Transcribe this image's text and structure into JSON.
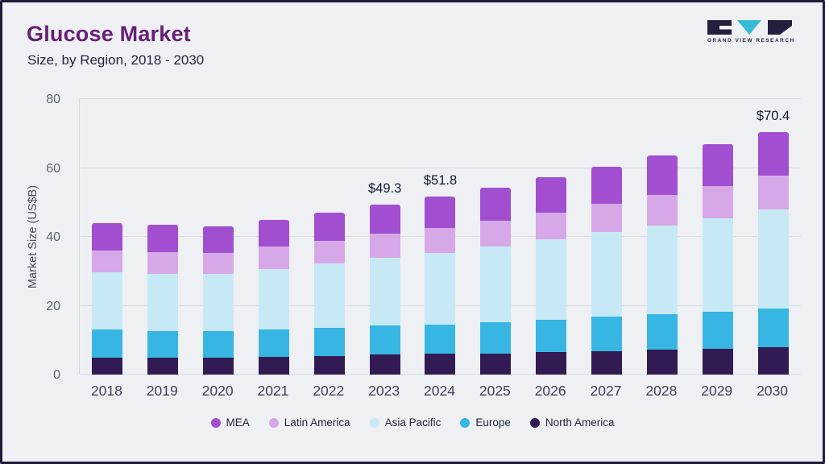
{
  "header": {
    "title": "Glucose Market",
    "subtitle": "Size, by Region, 2018 - 2030"
  },
  "logo": {
    "text": "GRAND VIEW RESEARCH"
  },
  "chart_data": {
    "type": "bar",
    "stacked": true,
    "title": "Glucose Market Size, by Region, 2018 - 2030",
    "xlabel": "",
    "ylabel": "Market Size (US$B)",
    "ylim": [
      0,
      80
    ],
    "yticks": [
      0,
      20,
      40,
      60,
      80
    ],
    "grid": true,
    "legend_position": "bottom",
    "categories": [
      "2018",
      "2019",
      "2020",
      "2021",
      "2022",
      "2023",
      "2024",
      "2025",
      "2026",
      "2027",
      "2028",
      "2029",
      "2030"
    ],
    "series": [
      {
        "name": "North America",
        "color": "#321b52",
        "values": [
          5.0,
          5.0,
          5.0,
          5.2,
          5.5,
          5.8,
          6.0,
          6.2,
          6.5,
          6.9,
          7.2,
          7.5,
          7.9
        ]
      },
      {
        "name": "Europe",
        "color": "#38b6e3",
        "values": [
          8.2,
          7.6,
          7.6,
          7.9,
          8.1,
          8.4,
          8.6,
          9.1,
          9.5,
          9.9,
          10.3,
          10.8,
          11.3
        ]
      },
      {
        "name": "Asia Pacific",
        "color": "#c7e9f6",
        "values": [
          16.6,
          16.7,
          16.6,
          17.5,
          18.7,
          19.8,
          20.8,
          22.0,
          23.2,
          24.5,
          25.8,
          27.1,
          28.7
        ]
      },
      {
        "name": "Latin America",
        "color": "#d7a8e8",
        "values": [
          6.2,
          6.2,
          6.1,
          6.5,
          6.6,
          7.0,
          7.2,
          7.4,
          7.8,
          8.3,
          8.8,
          9.3,
          10.0
        ]
      },
      {
        "name": "MEA",
        "color": "#a14fd0",
        "values": [
          8.0,
          8.0,
          7.7,
          7.9,
          8.1,
          8.3,
          9.2,
          9.6,
          10.3,
          10.8,
          11.5,
          12.1,
          12.5
        ]
      }
    ],
    "totals": [
      44.0,
      43.5,
      43.0,
      45.0,
      47.0,
      49.3,
      51.8,
      54.3,
      57.3,
      60.4,
      63.6,
      66.8,
      70.4
    ],
    "annotations": [
      {
        "category": "2023",
        "label": "$49.3"
      },
      {
        "category": "2024",
        "label": "$51.8"
      },
      {
        "category": "2030",
        "label": "$70.4"
      }
    ],
    "legend": [
      "MEA",
      "Latin America",
      "Asia Pacific",
      "Europe",
      "North America"
    ]
  }
}
